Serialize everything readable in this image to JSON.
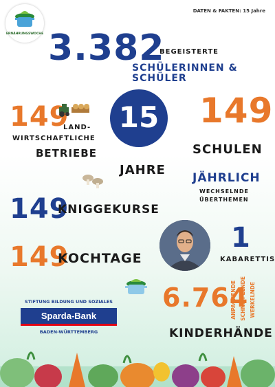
{
  "header": {
    "text": "DATEN & FAKTEN: 15 Jahre",
    "logo_text": "ERNÄHRUNGSWOCHE"
  },
  "stats": {
    "students_number": "3.382",
    "students_label_1": "BEGEISTERTE",
    "students_label_2": "SCHÜLERINNEN & SCHÜLER",
    "farms_number": "149",
    "farms_label_1": "LAND-",
    "farms_label_2": "WIRTSCHAFTLICHE",
    "farms_label_3": "BETRIEBE",
    "years_number": "15",
    "years_label": "JAHRE",
    "schools_number": "149",
    "schools_label": "SCHULEN",
    "yearly_label": "JÄHRLICH",
    "yearly_sub_1": "WECHSELNDE",
    "yearly_sub_2": "ÜBERTHEMEN",
    "etiquette_number": "149",
    "etiquette_label": "KNIGGEKURSE",
    "cabaret_number": "1",
    "cabaret_label": "KABARETTIST",
    "cooking_number": "149",
    "cooking_label": "KOCHTAGE",
    "hands_number": "6.764",
    "hands_label": "KINDERHÄNDE",
    "hands_vert_1": "ANPACKENDE",
    "hands_vert_2": "SCHNIPPELNDE",
    "hands_vert_3": "WERKELNDE"
  },
  "sponsor": {
    "top": "STIFTUNG BILDUNG UND SOZIALES",
    "bank": "Sparda-Bank",
    "bottom": "BADEN-WÜRTTEMBERG"
  }
}
